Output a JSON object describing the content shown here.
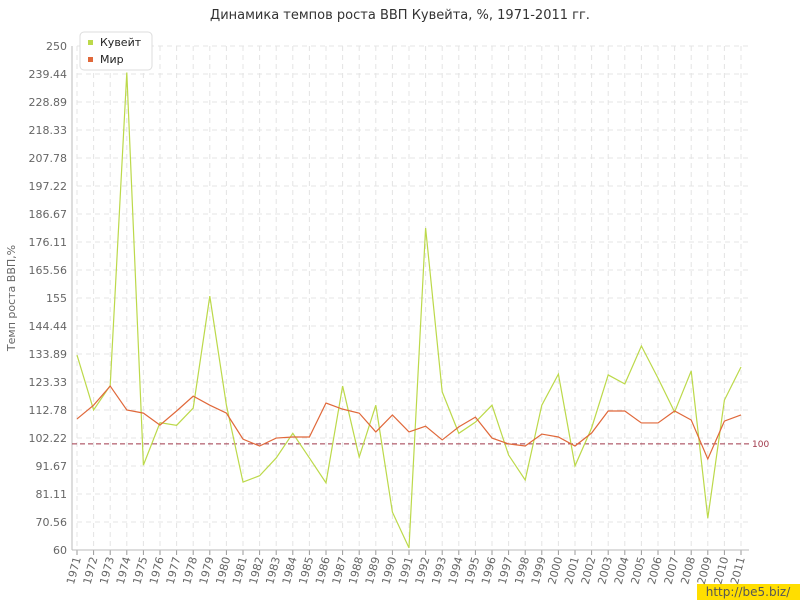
{
  "chart_data": {
    "type": "line",
    "title": "Динамика темпов роста ВВП Кувейта, %, 1971-2011 гг.",
    "y_label": "Темп роста ВВП,%",
    "categories": [
      "1971",
      "1972",
      "1973",
      "1974",
      "1975",
      "1976",
      "1977",
      "1978",
      "1979",
      "1980",
      "1981",
      "1982",
      "1983",
      "1984",
      "1985",
      "1986",
      "1987",
      "1988",
      "1989",
      "1990",
      "1991",
      "1992",
      "1993",
      "1994",
      "1995",
      "1996",
      "1997",
      "1998",
      "1999",
      "2000",
      "2001",
      "2002",
      "2003",
      "2004",
      "2005",
      "2006",
      "2007",
      "2008",
      "2009",
      "2010",
      "2011"
    ],
    "series": [
      {
        "name": "Кувейт",
        "color": "#bcd94a",
        "values": [
          133.5,
          112.8,
          122,
          240,
          92,
          108,
          107,
          113.5,
          155.7,
          114.6,
          85.6,
          88,
          94.7,
          104,
          94.7,
          85.3,
          121.8,
          95,
          114.6,
          74.3,
          60.8,
          181.4,
          119.6,
          104,
          108.2,
          114.6,
          95.8,
          86.4,
          114.6,
          126.3,
          91.7,
          106,
          126,
          122.6,
          136.9,
          124.8,
          112,
          127.5,
          72,
          116.5,
          129
        ]
      },
      {
        "name": "Мир",
        "color": "#e0683a",
        "values": [
          109.4,
          114.6,
          121.8,
          112.8,
          111.6,
          107.1,
          112.4,
          118,
          114.6,
          111.6,
          101.8,
          99.2,
          102.2,
          102.6,
          102.6,
          115.4,
          113.1,
          111.6,
          104.5,
          110.9,
          104.5,
          106.7,
          101.5,
          106.4,
          110.1,
          102.2,
          100,
          99.2,
          103.7,
          102.6,
          99.2,
          104.1,
          112.4,
          112.4,
          107.9,
          107.9,
          112.4,
          109,
          94.3,
          108.6,
          110.9
        ]
      }
    ],
    "ylim": [
      60,
      250
    ],
    "yticks": [
      60,
      70.56,
      81.11,
      91.67,
      102.22,
      112.78,
      123.33,
      133.89,
      144.44,
      155,
      165.56,
      176.11,
      186.67,
      197.22,
      207.78,
      218.33,
      228.89,
      239.44,
      250
    ],
    "reference_line": {
      "value": 100,
      "color": "#a0384a"
    },
    "grid": true,
    "legend": "top-left",
    "watermark": "http://be5.biz/"
  }
}
